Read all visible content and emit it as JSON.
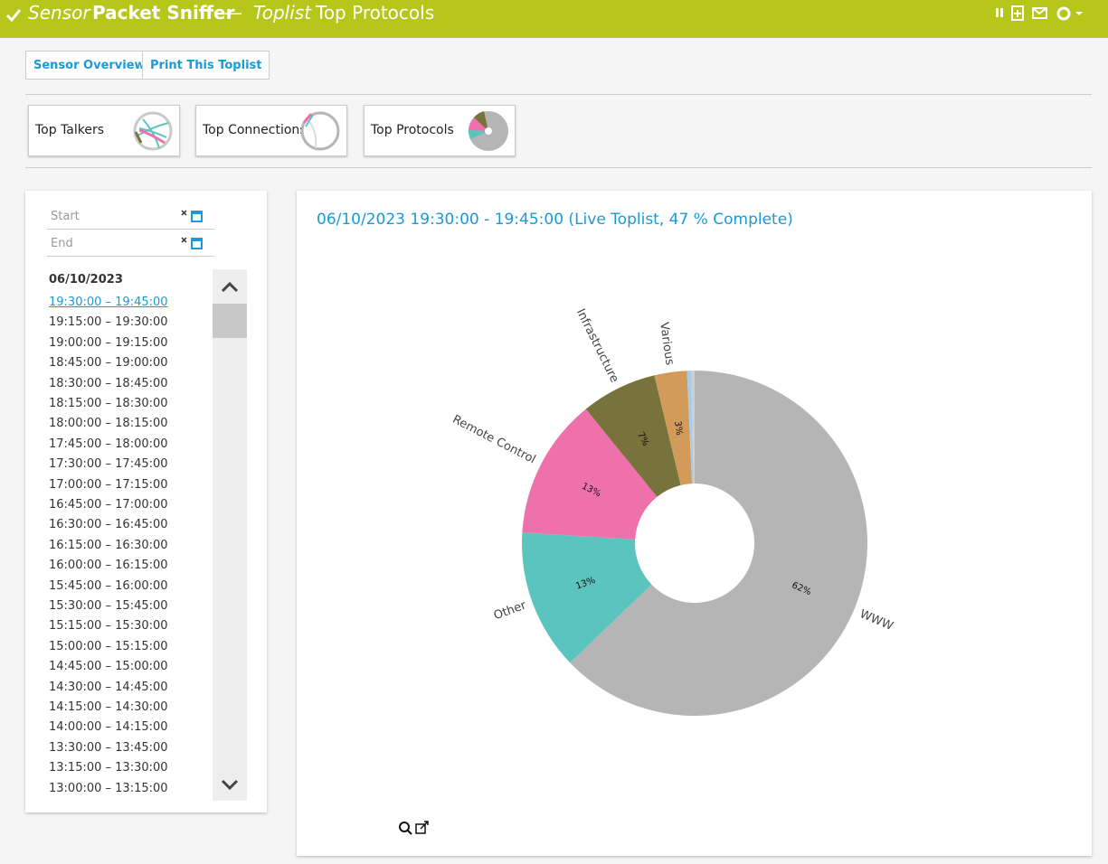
{
  "header": {
    "object_type": "Sensor",
    "name": "Packet Sniffer",
    "separator": "—",
    "section_type": "Toplist",
    "section_name": "Top Protocols"
  },
  "buttons": [
    "Sensor Overview",
    "Print This Toplist"
  ],
  "tiles": [
    "Top Talkers",
    "Top Connections",
    "Top Protocols"
  ],
  "sidebar": {
    "start_placeholder": "Start",
    "end_placeholder": "End",
    "date": "06/10/2023",
    "periods": [
      "19:30:00 – 19:45:00",
      "19:15:00 – 19:30:00",
      "19:00:00 – 19:15:00",
      "18:45:00 – 19:00:00",
      "18:30:00 – 18:45:00",
      "18:15:00 – 18:30:00",
      "18:00:00 – 18:15:00",
      "17:45:00 – 18:00:00",
      "17:30:00 – 17:45:00",
      "17:00:00 – 17:15:00",
      "16:45:00 – 17:00:00",
      "16:30:00 – 16:45:00",
      "16:15:00 – 16:30:00",
      "16:00:00 – 16:15:00",
      "15:45:00 – 16:00:00",
      "15:30:00 – 15:45:00",
      "15:15:00 – 15:30:00",
      "15:00:00 – 15:15:00",
      "14:45:00 – 15:00:00",
      "14:30:00 – 14:45:00",
      "14:15:00 – 14:30:00",
      "14:00:00 – 14:15:00",
      "13:30:00 – 13:45:00",
      "13:15:00 – 13:30:00",
      "13:00:00 – 13:15:00"
    ]
  },
  "chart_data": {
    "type": "donut",
    "title": "06/10/2023 19:30:00 - 19:45:00 (Live Toplist, 47 % Complete)",
    "categories": [
      "WWW",
      "Other",
      "Remote Control",
      "Infrastructure",
      "Various",
      null,
      null
    ],
    "values": [
      62,
      13,
      13,
      7,
      3,
      0.4,
      0.3
    ],
    "value_labels": [
      "62%",
      "13%",
      "13%",
      "7%",
      "3%",
      null,
      null
    ],
    "colors": [
      "#b5b5b5",
      "#5cc4bf",
      "#ef71ab",
      "#78733c",
      "#d29b5a",
      "#a8cdea",
      "#cfcfcf"
    ]
  }
}
